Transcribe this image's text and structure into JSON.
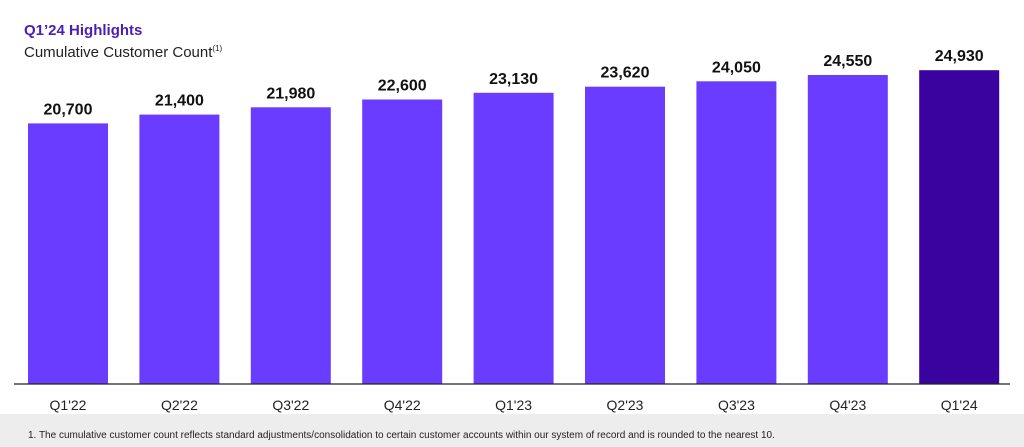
{
  "header": {
    "title": "Q1’24 Highlights",
    "subtitle": "Cumulative Customer Count",
    "subtitle_marker": "(1)"
  },
  "chart_data": {
    "type": "bar",
    "title": "Cumulative Customer Count",
    "categories": [
      "Q1'22",
      "Q2'22",
      "Q3'22",
      "Q4'22",
      "Q1'23",
      "Q2'23",
      "Q3'23",
      "Q4'23",
      "Q1'24"
    ],
    "series": [
      {
        "values": [
          20700,
          21400,
          21980,
          22600,
          23130,
          23620,
          24050,
          24550,
          24930
        ],
        "value_labels": [
          "20,700",
          "21,400",
          "21,980",
          "22,600",
          "23,130",
          "23,620",
          "24,050",
          "24,550",
          "24,930"
        ]
      }
    ],
    "xlabel": "",
    "ylabel": "",
    "ylim": [
      0,
      25500
    ],
    "grid": false,
    "legend": "none",
    "colors": {
      "bar": "#6a3cff",
      "highlight_bar": "#3a029e",
      "axis": "#222222"
    },
    "highlight_index": 8
  },
  "footnote": {
    "text": "1.  The cumulative customer count reflects standard adjustments/consolidation to certain customer accounts within our system of record and is rounded to the nearest 10."
  }
}
